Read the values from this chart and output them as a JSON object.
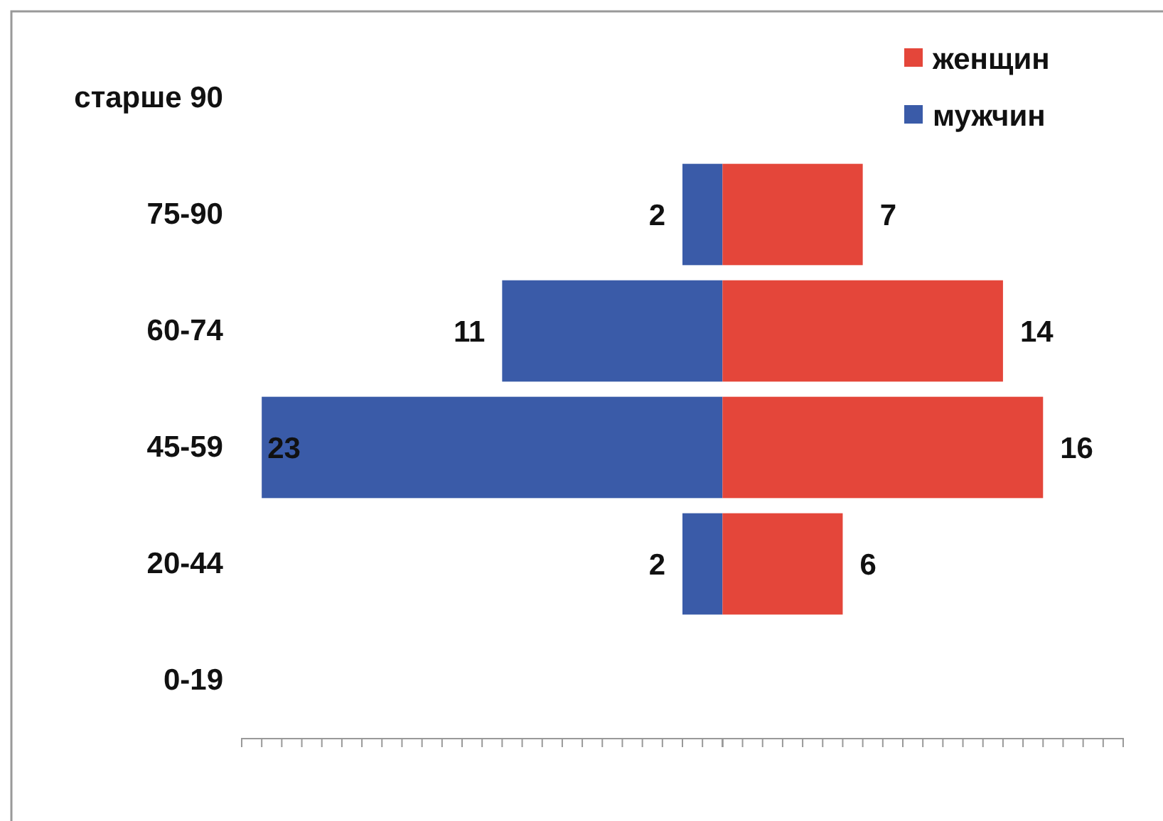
{
  "chart_data": [
    {
      "type": "bar",
      "orientation": "horizontal",
      "categories": [
        "старше 90",
        "75-90",
        "60-74",
        "45-59",
        "20-44",
        "0-19"
      ],
      "series": [
        {
          "name": "мужчин",
          "color": "#3a5ba8",
          "values": [
            null,
            2,
            11,
            23,
            2,
            null
          ]
        }
      ],
      "data_labels": true,
      "xlim": [
        24,
        0
      ],
      "xticks": [
        {
          "value": 24,
          "label": null
        },
        {
          "value": 23,
          "label": null
        },
        {
          "value": 22,
          "label": null
        },
        {
          "value": 21,
          "label": null
        },
        {
          "value": 20,
          "label": null
        },
        {
          "value": 19,
          "label": null
        },
        {
          "value": 18,
          "label": null
        },
        {
          "value": 17,
          "label": null
        },
        {
          "value": 16,
          "label": null
        },
        {
          "value": 15,
          "label": null
        },
        {
          "value": 14,
          "label": null
        },
        {
          "value": 13,
          "label": null
        },
        {
          "value": 12,
          "label": null
        },
        {
          "value": 11,
          "label": null
        },
        {
          "value": 10,
          "label": null
        },
        {
          "value": 9,
          "label": null
        },
        {
          "value": 8,
          "label": null
        },
        {
          "value": 7,
          "label": null
        },
        {
          "value": 6,
          "label": null
        },
        {
          "value": 5,
          "label": null
        },
        {
          "value": 4,
          "label": null
        },
        {
          "value": 3,
          "label": null
        },
        {
          "value": 2,
          "label": null
        },
        {
          "value": 1,
          "label": null
        },
        {
          "value": 0,
          "label": null
        }
      ],
      "tick_labels": "y",
      "legend": "top right"
    },
    {
      "type": "bar",
      "orientation": "horizontal",
      "categories": [
        "старше 90",
        "75-90",
        "60-74",
        "45-59",
        "20-44",
        "0-19"
      ],
      "series": [
        {
          "name": "женщин",
          "color": "#e4463a",
          "values": [
            null,
            7,
            14,
            16,
            6,
            null
          ]
        }
      ],
      "data_labels": true,
      "xlim": [
        0,
        20
      ],
      "xticks": [
        {
          "value": 0,
          "label": null
        },
        {
          "value": 1,
          "label": null
        },
        {
          "value": 2,
          "label": null
        },
        {
          "value": 3,
          "label": null
        },
        {
          "value": 4,
          "label": null
        },
        {
          "value": 5,
          "label": null
        },
        {
          "value": 6,
          "label": null
        },
        {
          "value": 7,
          "label": null
        },
        {
          "value": 8,
          "label": null
        },
        {
          "value": 9,
          "label": null
        },
        {
          "value": 10,
          "label": null
        },
        {
          "value": 11,
          "label": null
        },
        {
          "value": 12,
          "label": null
        },
        {
          "value": 13,
          "label": null
        },
        {
          "value": 14,
          "label": null
        },
        {
          "value": 15,
          "label": null
        },
        {
          "value": 16,
          "label": null
        },
        {
          "value": 17,
          "label": null
        },
        {
          "value": 18,
          "label": null
        },
        {
          "value": 19,
          "label": null
        },
        {
          "value": 20,
          "label": null
        }
      ],
      "tick_labels": false,
      "legend": "top right"
    }
  ]
}
